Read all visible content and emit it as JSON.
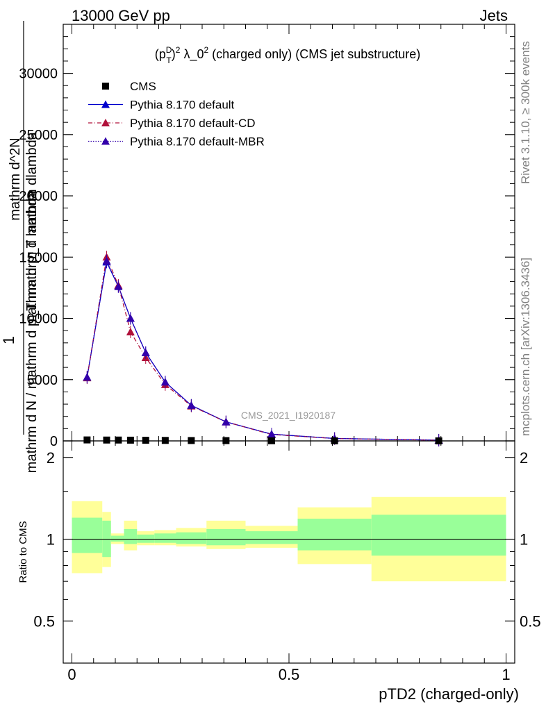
{
  "header": {
    "energy_label": "13000 GeV pp",
    "process_label": "Jets"
  },
  "side_labels": {
    "rivet": "Rivet 3.1.10, ≥ 300k events",
    "mcplots": "mcplots.cern.ch [arXiv:1306.3436]"
  },
  "watermark": "CMS_2021_I1920187",
  "legend": {
    "title": "(p_T^D)^2 λ_0^2 (charged only) (CMS jet substructure)",
    "entries": [
      {
        "label": "CMS",
        "color": "#000000",
        "marker": "square",
        "line": "none"
      },
      {
        "label": "Pythia 8.170 default",
        "color": "#0000cc",
        "marker": "triangle",
        "line": "solid"
      },
      {
        "label": "Pythia 8.170 default-CD",
        "color": "#b0103a",
        "marker": "triangle",
        "line": "dashdot"
      },
      {
        "label": "Pythia 8.170 default-MBR",
        "color": "#3300aa",
        "marker": "triangle",
        "line": "dotted"
      }
    ]
  },
  "chart_data": [
    {
      "type": "line",
      "panel": "main",
      "ylabel_numerator": "1",
      "ylabel_denominator": "mathrm d N / mathrm d p_T mathrm d lambda",
      "ylabel_top": "mathrm d^2N",
      "ylim": [
        0,
        34000
      ],
      "yticks": [
        0,
        5000,
        10000,
        15000,
        20000,
        25000,
        30000
      ],
      "ytick_labels": [
        "0",
        "5000",
        "10000",
        "15000",
        "20000",
        "25000",
        "30000"
      ],
      "x": [
        0.035,
        0.08,
        0.107,
        0.135,
        0.17,
        0.215,
        0.275,
        0.355,
        0.46,
        0.605,
        0.845
      ],
      "series": [
        {
          "name": "CMS",
          "values": [
            80,
            70,
            70,
            60,
            50,
            40,
            30,
            25,
            15,
            8,
            4
          ]
        },
        {
          "name": "Pythia 8.170 default",
          "values": [
            5200,
            14600,
            12600,
            10000,
            7200,
            4800,
            2900,
            1550,
            550,
            200,
            60
          ]
        },
        {
          "name": "Pythia 8.170 default-CD",
          "values": [
            5150,
            15000,
            12700,
            8900,
            6800,
            4600,
            2850,
            1550,
            520,
            190,
            55
          ]
        },
        {
          "name": "Pythia 8.170 default-MBR",
          "values": [
            5200,
            14700,
            12600,
            10000,
            7200,
            4800,
            2900,
            1550,
            550,
            200,
            60
          ]
        }
      ]
    },
    {
      "type": "area",
      "panel": "ratio",
      "ylabel": "Ratio to CMS",
      "xlabel": "pTD2 (charged-only)",
      "xlim": [
        -0.02,
        1.02
      ],
      "ylim": [
        0.35,
        2.3
      ],
      "yticks": [
        0.5,
        1,
        2
      ],
      "ytick_labels": [
        "0.5",
        "1",
        "2"
      ],
      "xticks": [
        0,
        0.5,
        1
      ],
      "xtick_labels": [
        "0",
        "0.5",
        "1"
      ],
      "bins": [
        [
          0.0,
          0.07
        ],
        [
          0.07,
          0.09
        ],
        [
          0.09,
          0.12
        ],
        [
          0.12,
          0.15
        ],
        [
          0.15,
          0.19
        ],
        [
          0.19,
          0.24
        ],
        [
          0.24,
          0.31
        ],
        [
          0.31,
          0.4
        ],
        [
          0.4,
          0.52
        ],
        [
          0.52,
          0.69
        ],
        [
          0.69,
          1.0
        ]
      ],
      "total_uncertainty_band": [
        [
          0.75,
          1.38
        ],
        [
          0.79,
          1.26
        ],
        [
          0.96,
          1.05
        ],
        [
          0.91,
          1.17
        ],
        [
          0.95,
          1.07
        ],
        [
          0.95,
          1.08
        ],
        [
          0.94,
          1.1
        ],
        [
          0.92,
          1.17
        ],
        [
          0.93,
          1.12
        ],
        [
          0.81,
          1.31
        ],
        [
          0.7,
          1.43
        ]
      ],
      "stat_uncertainty_band": [
        [
          0.89,
          1.2
        ],
        [
          0.86,
          1.17
        ],
        [
          0.98,
          1.03
        ],
        [
          0.96,
          1.09
        ],
        [
          0.97,
          1.04
        ],
        [
          0.97,
          1.05
        ],
        [
          0.96,
          1.06
        ],
        [
          0.95,
          1.09
        ],
        [
          0.96,
          1.07
        ],
        [
          0.91,
          1.19
        ],
        [
          0.87,
          1.23
        ]
      ],
      "band_colors": {
        "total": "#ffff99",
        "stat": "#99ff99"
      }
    }
  ]
}
